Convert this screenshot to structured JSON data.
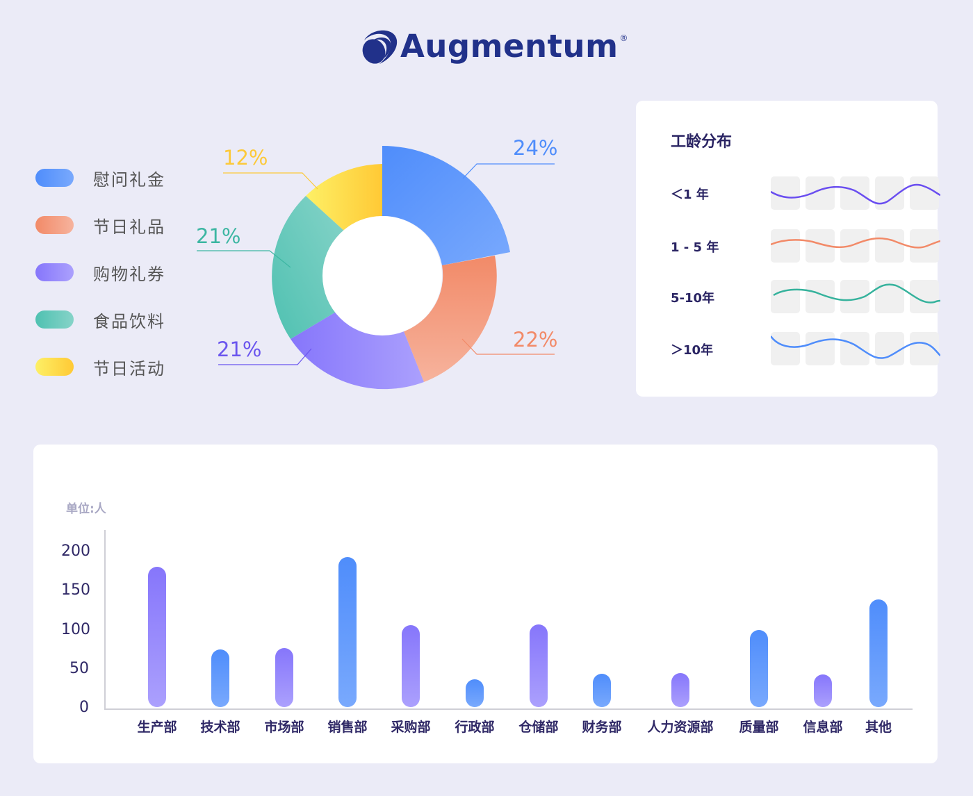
{
  "header": {
    "logo_text": "Augmentum",
    "logo_mark": "®"
  },
  "legend": {
    "items": [
      {
        "label": "慰问礼金",
        "color_from": "#4f8dfb",
        "color_to": "#79a9fd"
      },
      {
        "label": "节日礼品",
        "color_from": "#f28a68",
        "color_to": "#f6b39d"
      },
      {
        "label": "购物礼券",
        "color_from": "#8676fb",
        "color_to": "#aba0fd"
      },
      {
        "label": "食品饮料",
        "color_from": "#4fc1b1",
        "color_to": "#86d3c8"
      },
      {
        "label": "节日活动",
        "color_from": "#fdf066",
        "color_to": "#ffc935"
      }
    ]
  },
  "donut": {
    "labels": [
      {
        "text": "24%",
        "color": "#4f8dfb"
      },
      {
        "text": "22%",
        "color": "#f28a68"
      },
      {
        "text": "21%",
        "color": "#6a55ee"
      },
      {
        "text": "21%",
        "color": "#3cb6a2"
      },
      {
        "text": "12%",
        "color": "#fcc93a"
      }
    ]
  },
  "tenure": {
    "title": "工龄分布",
    "rows": [
      {
        "label": "＜1 年",
        "color": "#6a4ef0"
      },
      {
        "label": "1 - 5 年",
        "color": "#f28a68"
      },
      {
        "label": "5-10年",
        "color": "#35b29c"
      },
      {
        "label": "＞10年",
        "color": "#4f8dfb"
      }
    ]
  },
  "bar_chart": {
    "unit_label": "单位:人",
    "yticks": [
      "200",
      "150",
      "100",
      "50",
      "0"
    ]
  },
  "chart_data": [
    {
      "type": "pie",
      "title": "",
      "variant": "donut",
      "categories": [
        "慰问礼金",
        "节日礼品",
        "购物礼券",
        "食品饮料",
        "节日活动"
      ],
      "values": [
        24,
        22,
        21,
        21,
        12
      ],
      "value_labels": [
        "24%",
        "22%",
        "21%",
        "21%",
        "12%"
      ],
      "legend_position": "left"
    },
    {
      "type": "line",
      "title": "工龄分布",
      "series": [
        {
          "name": "＜1 年"
        },
        {
          "name": "1 - 5 年"
        },
        {
          "name": "5-10年"
        },
        {
          "name": "＞10年"
        }
      ],
      "note": "decorative sparklines without axes"
    },
    {
      "type": "bar",
      "title": "",
      "ylabel": "单位:人",
      "xlabel": "",
      "categories": [
        "生产部",
        "技术部",
        "市场部",
        "销售部",
        "采购部",
        "行政部",
        "仓储部",
        "财务部",
        "人力资源部",
        "质量部",
        "信息部",
        "其他"
      ],
      "values": [
        180,
        74,
        76,
        192,
        105,
        36,
        106,
        43,
        44,
        99,
        42,
        138
      ],
      "bar_colors": [
        "purple",
        "blue",
        "purple",
        "blue",
        "purple",
        "blue",
        "purple",
        "blue",
        "purple",
        "blue",
        "purple",
        "blue"
      ],
      "ylim": [
        0,
        200
      ],
      "yticks": [
        0,
        50,
        100,
        150,
        200
      ],
      "grid": false
    }
  ]
}
